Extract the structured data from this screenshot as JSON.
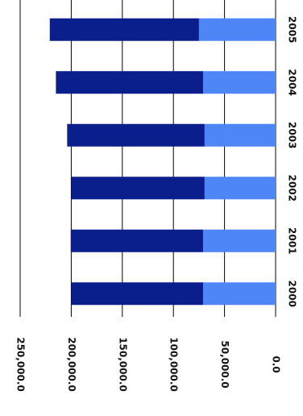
{
  "chart_data": {
    "type": "bar",
    "stacked": true,
    "orientation": "rotated",
    "categories": [
      "2000",
      "2001",
      "2002",
      "2003",
      "2004",
      "2005"
    ],
    "series": [
      {
        "color": "#4f86f7",
        "values": [
          71000,
          71000,
          69500,
          69500,
          71000,
          75000
        ]
      },
      {
        "color": "#0b1f8c",
        "values": [
          129000,
          129500,
          130500,
          134500,
          144000,
          146000
        ]
      }
    ],
    "ylim": [
      0,
      250000
    ],
    "yticks": [
      {
        "value": 0,
        "label": "0.0"
      },
      {
        "value": 50000,
        "label": "50,000.0"
      },
      {
        "value": 100000,
        "label": "100,000.0"
      },
      {
        "value": 150000,
        "label": "150,000.0"
      },
      {
        "value": 200000,
        "label": "200,000.0"
      },
      {
        "value": 250000,
        "label": "250,000.0"
      }
    ],
    "grid": true
  }
}
